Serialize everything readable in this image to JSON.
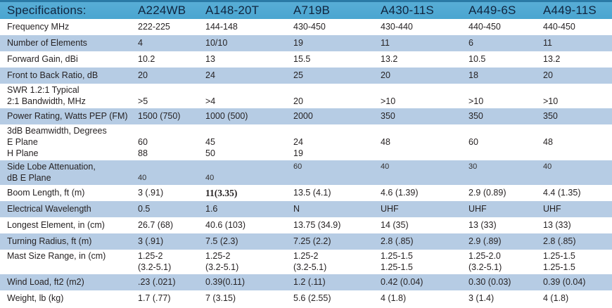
{
  "table": {
    "header": {
      "label": "Specifications:",
      "columns": [
        "A224WB",
        "A148-20T",
        "A719B",
        "A430-11S",
        "A449-6S",
        "A449-11S"
      ]
    },
    "rows": [
      {
        "label": "Frequency MHz",
        "values": [
          "222-225",
          "144-148",
          "430-450",
          "430-440",
          "440-450",
          "440-450"
        ]
      },
      {
        "label": "Number of Elements",
        "values": [
          "4",
          "10/10",
          "19",
          "11",
          "6",
          "11"
        ]
      },
      {
        "label": "Forward Gain, dBi",
        "values": [
          "10.2",
          "13",
          "15.5",
          "13.2",
          "10.5",
          "13.2"
        ]
      },
      {
        "label": "Front to Back Ratio, dB",
        "values": [
          "20",
          "24",
          "25",
          "20",
          "18",
          "20"
        ]
      },
      {
        "label": [
          "SWR 1.2:1 Typical",
          "2:1 Bandwidth, MHz"
        ],
        "values": [
          [
            "",
            ">5"
          ],
          [
            "",
            ">4"
          ],
          [
            "",
            "20"
          ],
          [
            "",
            ">10"
          ],
          [
            "",
            ">10"
          ],
          [
            "",
            ">10"
          ]
        ]
      },
      {
        "label": "Power Rating, Watts PEP (FM)",
        "values": [
          "1500 (750)",
          "1000 (500)",
          "2000",
          "350",
          "350",
          "350"
        ]
      },
      {
        "label": [
          "3dB Beamwidth, Degrees",
          "E Plane",
          "H Plane"
        ],
        "values": [
          [
            "",
            "60",
            "88"
          ],
          [
            "",
            "45",
            "50"
          ],
          [
            "",
            "24",
            "19"
          ],
          [
            "",
            "48"
          ],
          [
            "",
            "60"
          ],
          [
            "",
            "48"
          ]
        ]
      },
      {
        "label": [
          "Side Lobe Attenuation,",
          "dB E Plane"
        ],
        "values": [
          [
            "",
            "40"
          ],
          [
            "",
            "40"
          ],
          [
            "60"
          ],
          [
            "40"
          ],
          [
            "30"
          ],
          [
            "40"
          ]
        ],
        "value_size": "small"
      },
      {
        "label": "Boom Length, ft (m)",
        "values": [
          "3 (.91)",
          "11(3.35)",
          "13.5 (4.1)",
          "4.6 (1.39)",
          "2.9 (0.89)",
          "4.4 (1.35)"
        ],
        "bold_serif_cell": 1
      },
      {
        "label": "Electrical Wavelength",
        "values": [
          "0.5",
          "1.6",
          "N",
          "UHF",
          "UHF",
          "UHF"
        ]
      },
      {
        "label": "Longest Element, in (cm)",
        "values": [
          "26.7 (68)",
          "40.6 (103)",
          "13.75 (34.9)",
          "14 (35)",
          "13 (33)",
          "13 (33)"
        ]
      },
      {
        "label": "Turning Radius, ft (m)",
        "values": [
          "3 (.91)",
          "7.5 (2.3)",
          "7.25 (2.2)",
          "2.8 (.85)",
          "2.9 (.89)",
          "2.8 (.85)"
        ]
      },
      {
        "label": "Mast Size Range, in (cm)",
        "values": [
          [
            "1.25-2",
            "(3.2-5.1)"
          ],
          [
            "1.25-2",
            "(3.2-5.1)"
          ],
          [
            "1.25-2",
            "(3.2-5.1)"
          ],
          [
            "1.25-1.5",
            "1.25-1.5"
          ],
          [
            "1.25-2.0",
            "(3.2-5.1)"
          ],
          [
            "1.25-1.5",
            "1.25-1.5"
          ]
        ]
      },
      {
        "label": "Wind Load, ft2 (m2)",
        "values": [
          ".23 (.021)",
          "0.39(0.11)",
          "1.2 (.11)",
          "0.42 (0.04)",
          "0.30 (0.03)",
          "0.39 (0.04)"
        ]
      },
      {
        "label": "Weight, lb (kg)",
        "values": [
          "1.7 (.77)",
          "7 (3.15)",
          "5.6 (2.55)",
          "4 (1.8)",
          "3 (1.4)",
          "4 (1.8)"
        ]
      }
    ]
  },
  "colors": {
    "header_bg": "#4aa5d0",
    "header_bg_top": "#58add6",
    "header_border": "#2a7aa6",
    "header_text": "#10253f",
    "row_shade": "#b6cce4",
    "row_white": "#ffffff",
    "body_text": "#272324"
  }
}
